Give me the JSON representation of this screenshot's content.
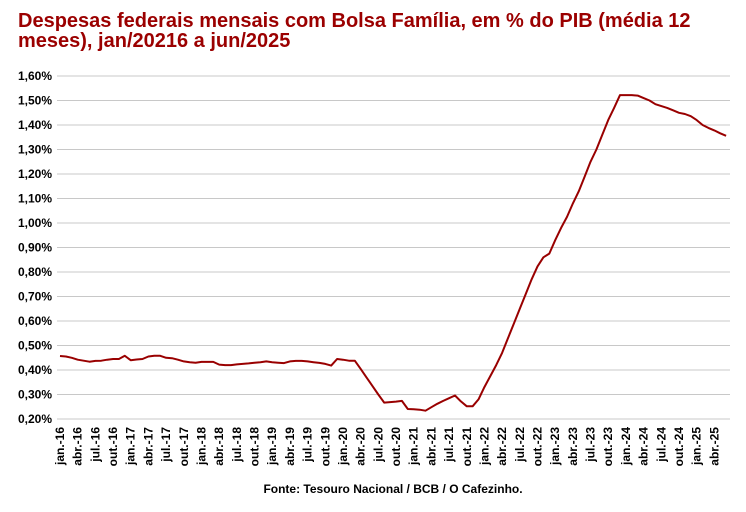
{
  "chart_data": {
    "type": "line",
    "title": "Despesas federais mensais com Bolsa Família, em % do PIB (média 12 meses), jan/20216 a jun/2025",
    "source": "Fonte: Tesouro Nacional / BCB / O Cafezinho.",
    "xlabel": "",
    "ylabel": "",
    "ylim": [
      0.2,
      1.6
    ],
    "yticks": [
      0.2,
      0.3,
      0.4,
      0.5,
      0.6,
      0.7,
      0.8,
      0.9,
      1.0,
      1.1,
      1.2,
      1.3,
      1.4,
      1.5,
      1.6
    ],
    "ytick_labels": [
      "0,20%",
      "0,30%",
      "0,40%",
      "0,50%",
      "0,60%",
      "0,70%",
      "0,80%",
      "0,90%",
      "1,00%",
      "1,10%",
      "1,20%",
      "1,30%",
      "1,40%",
      "1,50%",
      "1,60%"
    ],
    "xtick_labels": [
      "jan.-16",
      "abr.-16",
      "jul.-16",
      "out.-16",
      "jan.-17",
      "abr.-17",
      "jul.-17",
      "out.-17",
      "jan.-18",
      "abr.-18",
      "jul.-18",
      "out.-18",
      "jan.-19",
      "abr.-19",
      "jul.-19",
      "out.-19",
      "jan.-20",
      "abr.-20",
      "jul.-20",
      "out.-20",
      "jan.-21",
      "abr.-21",
      "jul.-21",
      "out.-21",
      "jan.-22",
      "abr.-22",
      "jul.-22",
      "out.-22",
      "jan.-23",
      "abr.-23",
      "jul.-23",
      "out.-23",
      "jan.-24",
      "abr.-24",
      "jul.-24",
      "out.-24",
      "jan.-25",
      "abr.-25"
    ],
    "grid": true,
    "color": "#990000",
    "series": [
      {
        "name": "Bolsa Família % PIB (média 12 meses)",
        "start": "jan-16",
        "frequency": "monthly",
        "values": [
          0.457,
          0.455,
          0.45,
          0.442,
          0.438,
          0.434,
          0.437,
          0.438,
          0.442,
          0.445,
          0.445,
          0.458,
          0.44,
          0.443,
          0.445,
          0.455,
          0.458,
          0.458,
          0.45,
          0.448,
          0.442,
          0.435,
          0.432,
          0.43,
          0.433,
          0.433,
          0.433,
          0.422,
          0.42,
          0.42,
          0.423,
          0.425,
          0.427,
          0.43,
          0.432,
          0.435,
          0.432,
          0.43,
          0.428,
          0.435,
          0.437,
          0.437,
          0.435,
          0.432,
          0.429,
          0.425,
          0.418,
          0.445,
          0.442,
          0.438,
          0.438,
          0.405,
          0.37,
          0.335,
          0.3,
          0.267,
          0.269,
          0.271,
          0.274,
          0.241,
          0.24,
          0.238,
          0.234,
          0.248,
          0.262,
          0.274,
          0.285,
          0.296,
          0.272,
          0.252,
          0.252,
          0.28,
          0.33,
          0.375,
          0.42,
          0.47,
          0.53,
          0.59,
          0.65,
          0.71,
          0.77,
          0.823,
          0.86,
          0.875,
          0.93,
          0.98,
          1.025,
          1.08,
          1.13,
          1.19,
          1.25,
          1.3,
          1.36,
          1.42,
          1.47,
          1.522,
          1.522,
          1.522,
          1.52,
          1.51,
          1.5,
          1.485,
          1.477,
          1.47,
          1.46,
          1.45,
          1.445,
          1.436,
          1.42,
          1.4,
          1.388,
          1.378,
          1.366,
          1.356
        ]
      }
    ]
  }
}
